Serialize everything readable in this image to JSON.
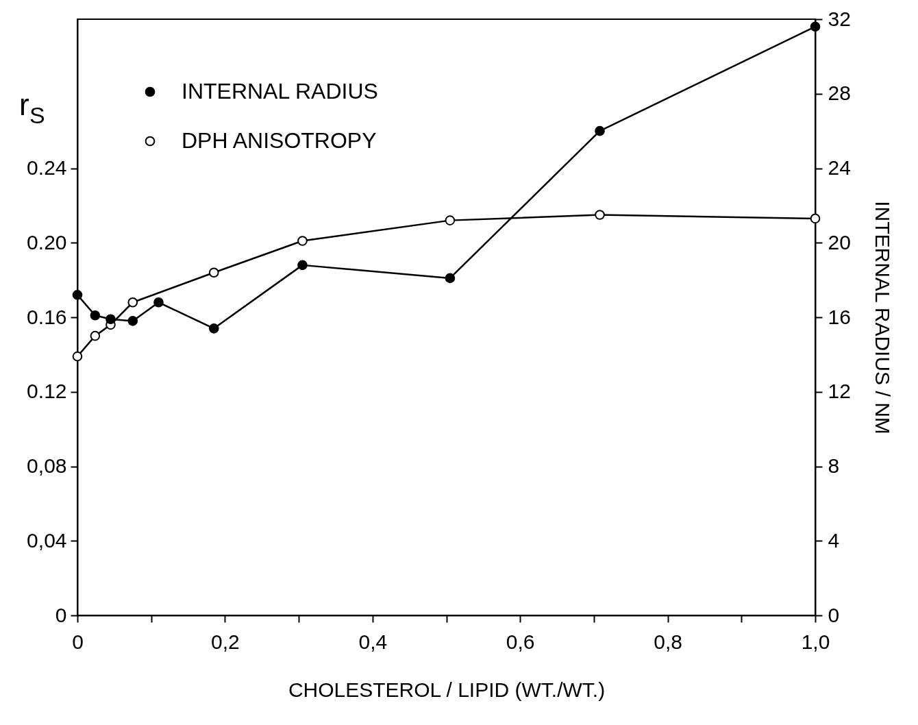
{
  "chart_data": {
    "type": "line",
    "xlabel": "CHOLESTEROL / LIPID (WT./WT.)",
    "ylabel": "r$_{S}$",
    "y2label": "INTERNAL RADIUS / NM",
    "marker": "circle",
    "grid": false,
    "legend": "top left",
    "xlim": [
      0,
      1.0
    ],
    "xticks": [
      0,
      {
        "value": 0.1,
        "label": null
      },
      {
        "value": 0.2,
        "label": "0,2"
      },
      {
        "value": 0.3,
        "label": null
      },
      {
        "value": 0.4,
        "label": "0,4"
      },
      {
        "value": 0.5,
        "label": null
      },
      {
        "value": 0.6,
        "label": "0,6"
      },
      {
        "value": 0.7,
        "label": null
      },
      {
        "value": 0.8,
        "label": "0,8"
      },
      {
        "value": 0.9,
        "label": null
      },
      {
        "value": 1.0,
        "label": "1,0"
      }
    ],
    "ylim": [
      0,
      0.32
    ],
    "yticks": [
      0,
      {
        "value": 0.04,
        "label": "0,04"
      },
      {
        "value": 0.08,
        "label": "0,08"
      },
      {
        "value": 0.12,
        "label": "0.12"
      },
      {
        "value": 0.16,
        "label": "0.16"
      },
      {
        "value": 0.2,
        "label": "0.20"
      },
      {
        "value": 0.24,
        "label": "0.24"
      }
    ],
    "y2lim": [
      0,
      32
    ],
    "y2ticks": [
      0,
      4,
      8,
      12,
      16,
      20,
      24,
      28,
      32
    ],
    "series": [
      {
        "name": "INTERNAL RADIUS",
        "color": "#000000",
        "axis": "y2",
        "x": [
          0,
          0.024,
          0.045,
          0.075,
          0.11,
          0.185,
          0.305,
          0.505,
          0.708,
          1.0
        ],
        "values": [
          17.2,
          16.1,
          15.9,
          15.8,
          16.8,
          15.4,
          18.8,
          18.1,
          26.0,
          31.6
        ]
      },
      {
        "name": "DPH ANISOTROPY",
        "color": "#ffffff",
        "x": [
          0,
          0.024,
          0.045,
          0.075,
          0.185,
          0.305,
          0.505,
          0.708,
          1.0
        ],
        "values": [
          0.139,
          0.15,
          0.156,
          0.168,
          0.184,
          0.201,
          0.212,
          0.215,
          0.213
        ]
      }
    ]
  }
}
